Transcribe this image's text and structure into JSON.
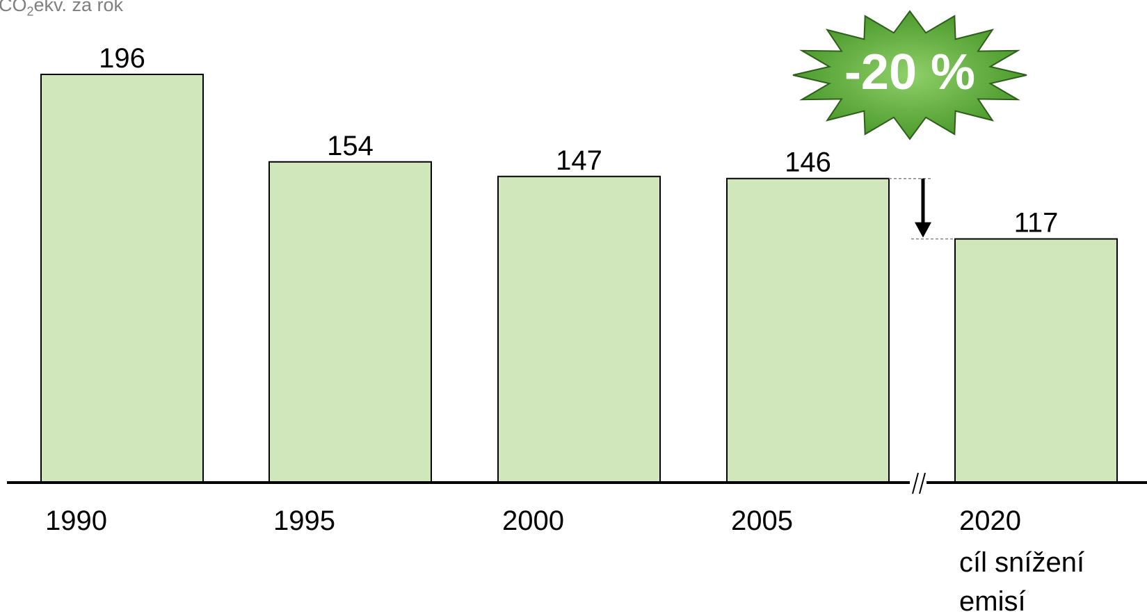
{
  "chart_data": {
    "type": "bar",
    "ylabel_prefix": "CO",
    "ylabel_sub": "2",
    "ylabel_suffix": "ekv. za rok",
    "categories": [
      "1990",
      "1995",
      "2000",
      "2005",
      "2020"
    ],
    "category_notes": [
      "",
      "",
      "",
      "",
      "cíl snížení emisí"
    ],
    "category_notes_lines": [
      [],
      [],
      [],
      [],
      [
        "cíl snížení",
        "emisí"
      ]
    ],
    "values": [
      196,
      154,
      147,
      146,
      117
    ],
    "ylim": [
      0,
      196
    ],
    "grid": false,
    "axis_break_between": [
      "2005",
      "2020"
    ],
    "annotation": {
      "text": "-20 %",
      "from_value": 146,
      "to_value": 117
    },
    "colors": {
      "bar_fill": "#d0e6bb",
      "bar_stroke": "#000000",
      "burst_fill": "#5aa63a",
      "burst_text": "#ffffff",
      "unit_text": "#7f7f7f"
    }
  }
}
